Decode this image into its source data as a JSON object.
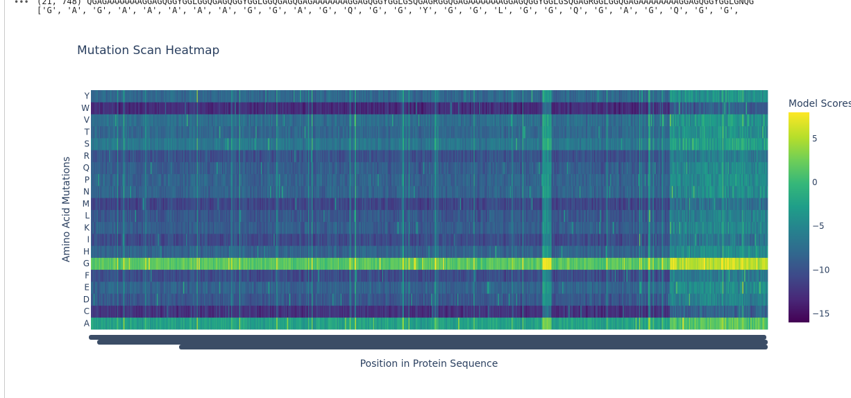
{
  "console": {
    "prompt_glyph": "•••",
    "line1": "(21, 748) QGAGAAAAAAAGGAGQGGYGGLGGQGAGQGGYGGLGGQGAGQGAGAAAAAAAGGAGQGGYGGLGSQGAGRGGQGAGAAAAAAAGGAGQGGYGGLGSQGAGRGGLGGQGAGAAAAAAAAGGAGQGGYGGLGNQG",
    "line2": "['G', 'A', 'G', 'A', 'A', 'A', 'A', 'A', 'G', 'G', 'A', 'G', 'Q', 'G', 'G', 'Y', 'G', 'G', 'L', 'G', 'G', 'Q', 'G', 'A', 'G', 'Q', 'G', 'G',"
  },
  "chart_data": {
    "type": "heatmap",
    "title": "Mutation Scan Heatmap",
    "xlabel": "Position in Protein Sequence",
    "ylabel": "Amino Acid Mutations",
    "y_categories": [
      "A",
      "C",
      "D",
      "E",
      "F",
      "G",
      "H",
      "I",
      "K",
      "L",
      "M",
      "N",
      "P",
      "Q",
      "R",
      "S",
      "T",
      "V",
      "W",
      "Y"
    ],
    "x_count": 748,
    "colorscale": "viridis",
    "colorbar": {
      "title": "Model Scores",
      "min": -16,
      "max": 8,
      "ticks": [
        5,
        0,
        -5,
        -10,
        -15
      ],
      "tick_labels": [
        "5",
        "0",
        "−5",
        "−10",
        "−15"
      ]
    },
    "row_mean_scores": {
      "A": -2.5,
      "C": -12.5,
      "D": -9.5,
      "E": -8.5,
      "F": -10.5,
      "G": 1.5,
      "H": -8.5,
      "I": -10.5,
      "K": -9.0,
      "L": -9.5,
      "M": -11.0,
      "N": -8.5,
      "P": -8.5,
      "Q": -9.0,
      "R": -10.0,
      "S": -6.5,
      "T": -8.0,
      "V": -7.5,
      "W": -13.0,
      "Y": -8.0
    },
    "column_pattern": {
      "high_variance_start_position": 640,
      "high_variance_shift": 4.0,
      "bright_stripe_positions": [
        501,
        502,
        503,
        504,
        505,
        506,
        507,
        508
      ]
    }
  }
}
